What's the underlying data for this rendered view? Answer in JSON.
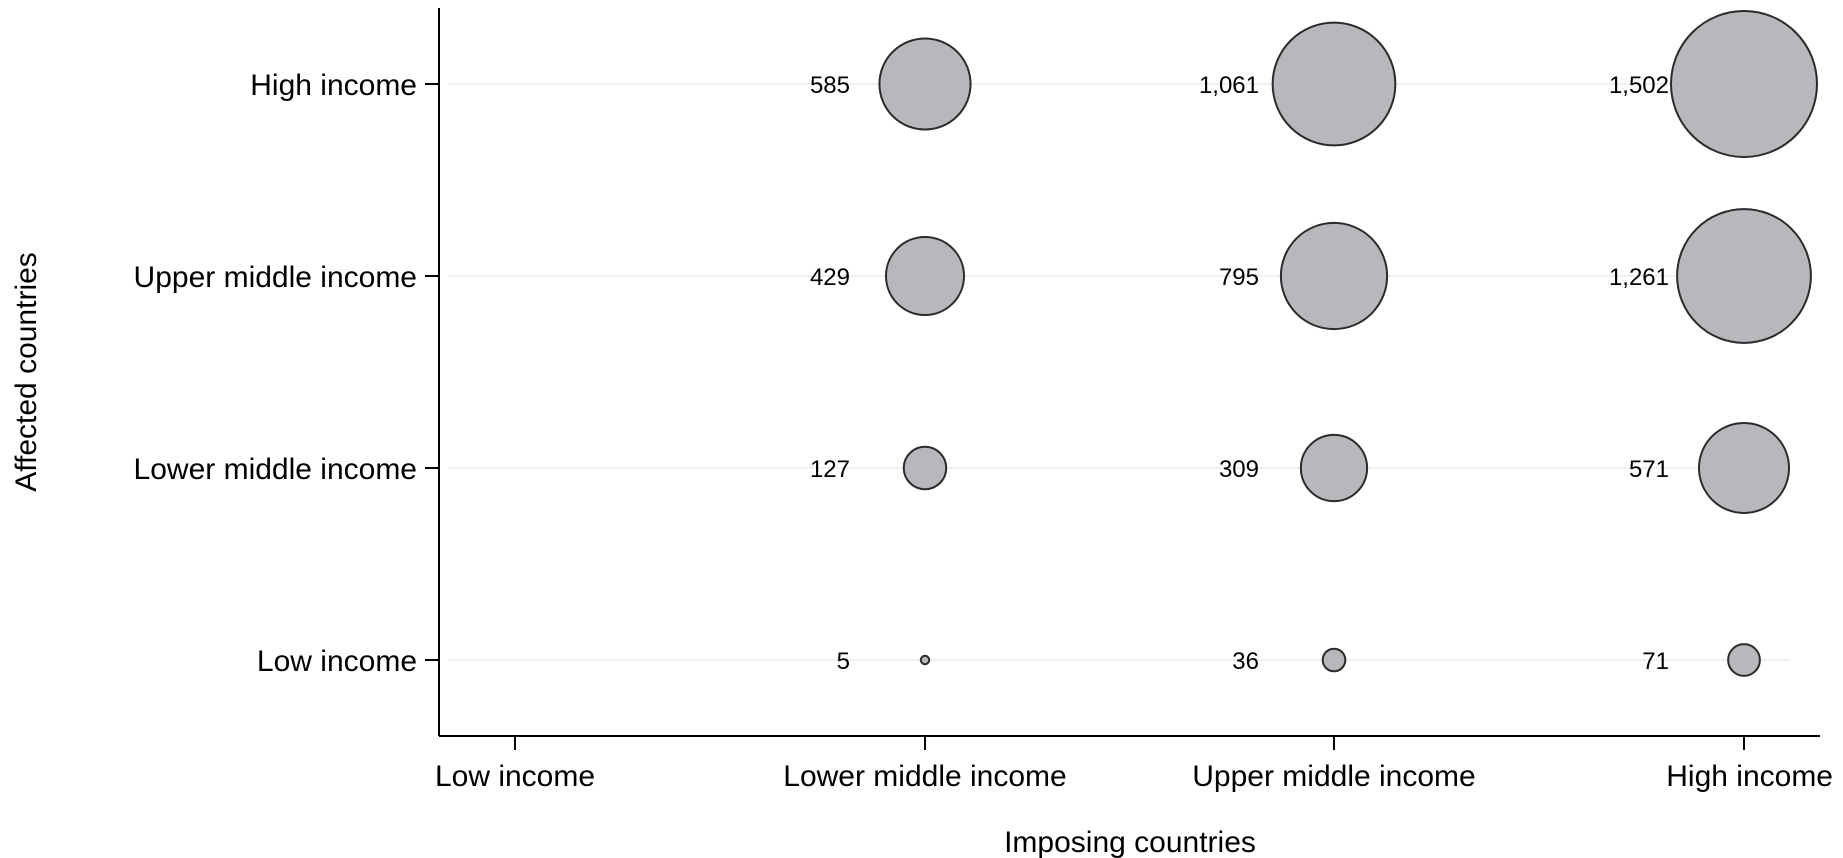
{
  "chart_data": {
    "type": "scatter",
    "subtype": "bubble",
    "xlabel": "Imposing countries",
    "ylabel": "Affected countries",
    "x_categories": [
      "Low income",
      "Lower middle income",
      "Upper middle income",
      "High income"
    ],
    "y_categories": [
      "Low income",
      "Lower middle income",
      "Upper middle income",
      "High income"
    ],
    "grid": "horizontal",
    "colors": {
      "bubble_fill": "#b7b8bb",
      "bubble_stroke": "#2b2b2b",
      "gridline": "#eaf2f3",
      "axis": "#000000"
    },
    "points": [
      {
        "x": "Lower middle income",
        "y": "High income",
        "value": 585,
        "label": "585"
      },
      {
        "x": "Upper middle income",
        "y": "High income",
        "value": 1061,
        "label": "1,061"
      },
      {
        "x": "High income",
        "y": "High income",
        "value": 1502,
        "label": "1,502"
      },
      {
        "x": "Lower middle income",
        "y": "Upper middle income",
        "value": 429,
        "label": "429"
      },
      {
        "x": "Upper middle income",
        "y": "Upper middle income",
        "value": 795,
        "label": "795"
      },
      {
        "x": "High income",
        "y": "Upper middle income",
        "value": 1261,
        "label": "1,261"
      },
      {
        "x": "Lower middle income",
        "y": "Lower middle income",
        "value": 127,
        "label": "127"
      },
      {
        "x": "Upper middle income",
        "y": "Lower middle income",
        "value": 309,
        "label": "309"
      },
      {
        "x": "High income",
        "y": "Lower middle income",
        "value": 571,
        "label": "571"
      },
      {
        "x": "Lower middle income",
        "y": "Low income",
        "value": 5,
        "label": "5"
      },
      {
        "x": "Upper middle income",
        "y": "Low income",
        "value": 36,
        "label": "36"
      },
      {
        "x": "High income",
        "y": "Low income",
        "value": 71,
        "label": "71"
      }
    ]
  }
}
